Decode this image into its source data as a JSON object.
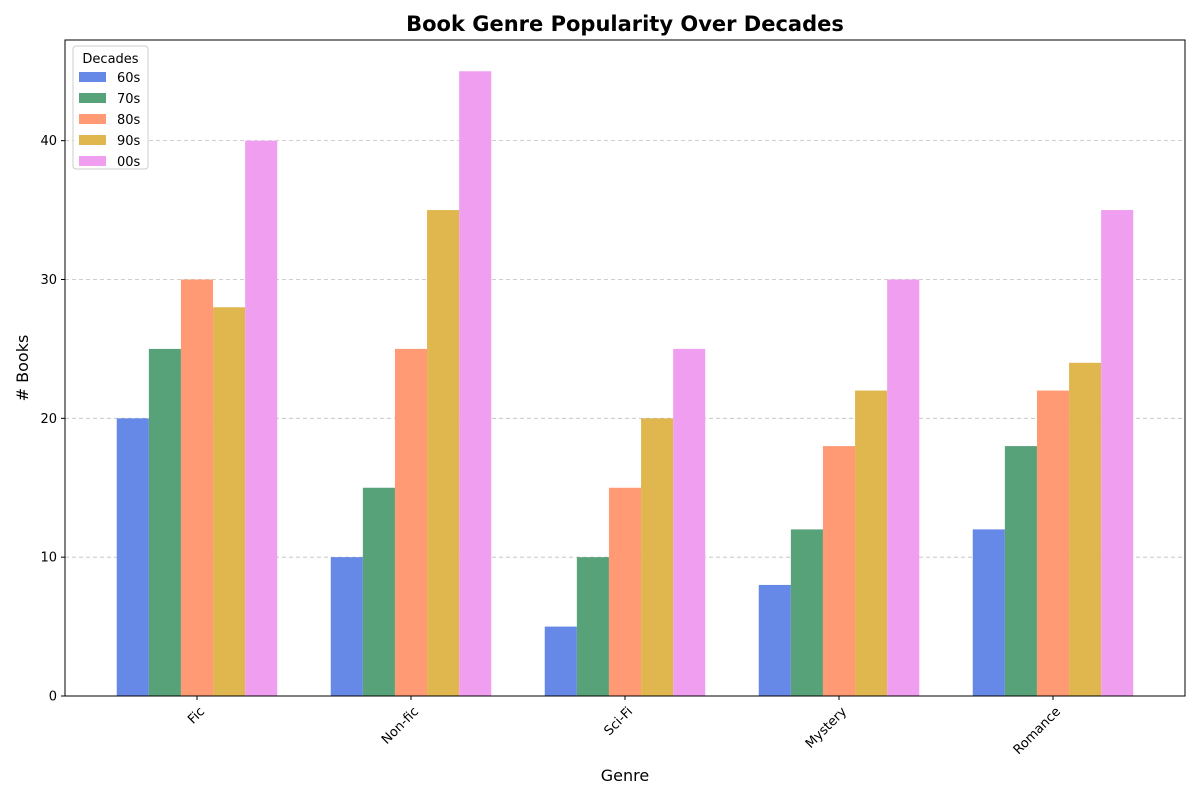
{
  "chart_data": {
    "type": "bar",
    "title": "Book Genre Popularity Over Decades",
    "xlabel": "Genre",
    "ylabel": "# Books",
    "categories": [
      "Fic",
      "Non-fic",
      "Sci-Fi",
      "Mystery",
      "Romance"
    ],
    "series": [
      {
        "name": "60s",
        "values": [
          20,
          10,
          5,
          8,
          12
        ],
        "color": "#6688e6"
      },
      {
        "name": "70s",
        "values": [
          25,
          15,
          10,
          12,
          18
        ],
        "color": "#58a27a"
      },
      {
        "name": "80s",
        "values": [
          30,
          25,
          15,
          18,
          22
        ],
        "color": "#ff9a74"
      },
      {
        "name": "90s",
        "values": [
          28,
          35,
          20,
          22,
          24
        ],
        "color": "#e0b64e"
      },
      {
        "name": "00s",
        "values": [
          40,
          45,
          25,
          30,
          35
        ],
        "color": "#f09ef0"
      }
    ],
    "ylim": [
      0,
      47.25
    ],
    "yticks": [
      0,
      10,
      20,
      30,
      40
    ],
    "grid": "y-dashed",
    "legend": {
      "title": "Decades",
      "placement": "top-left"
    },
    "x_tick_rotation": 45
  }
}
